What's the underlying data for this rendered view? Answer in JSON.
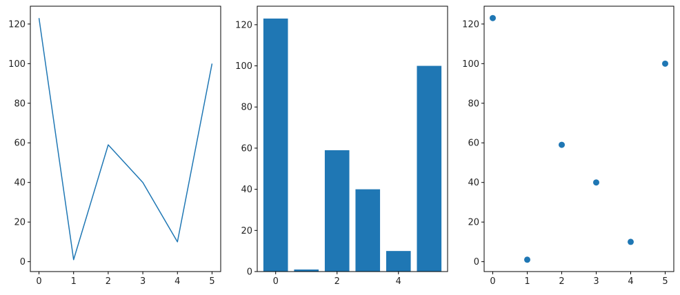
{
  "chart_data": [
    {
      "type": "line",
      "x": [
        0,
        1,
        2,
        3,
        4,
        5
      ],
      "values": [
        123,
        1,
        59,
        40,
        10,
        100
      ],
      "xlim": [
        -0.25,
        5.25
      ],
      "ylim": [
        -5,
        129
      ],
      "xticks": [
        0,
        1,
        2,
        3,
        4,
        5
      ],
      "yticks": [
        0,
        20,
        40,
        60,
        80,
        100,
        120
      ],
      "color": "#1f77b4",
      "grid": false
    },
    {
      "type": "bar",
      "x": [
        0,
        1,
        2,
        3,
        4,
        5
      ],
      "values": [
        123,
        1,
        59,
        40,
        10,
        100
      ],
      "xlim": [
        -0.6,
        5.6
      ],
      "ylim": [
        0,
        129
      ],
      "xticks": [
        0,
        2,
        4
      ],
      "yticks": [
        0,
        20,
        40,
        60,
        80,
        100,
        120
      ],
      "color": "#1f77b4",
      "grid": false
    },
    {
      "type": "scatter",
      "x": [
        0,
        1,
        2,
        3,
        4,
        5
      ],
      "values": [
        123,
        1,
        59,
        40,
        10,
        100
      ],
      "xlim": [
        -0.25,
        5.25
      ],
      "ylim": [
        -5,
        129
      ],
      "xticks": [
        0,
        1,
        2,
        3,
        4,
        5
      ],
      "yticks": [
        0,
        20,
        40,
        60,
        80,
        100,
        120
      ],
      "color": "#1f77b4",
      "grid": false
    }
  ]
}
